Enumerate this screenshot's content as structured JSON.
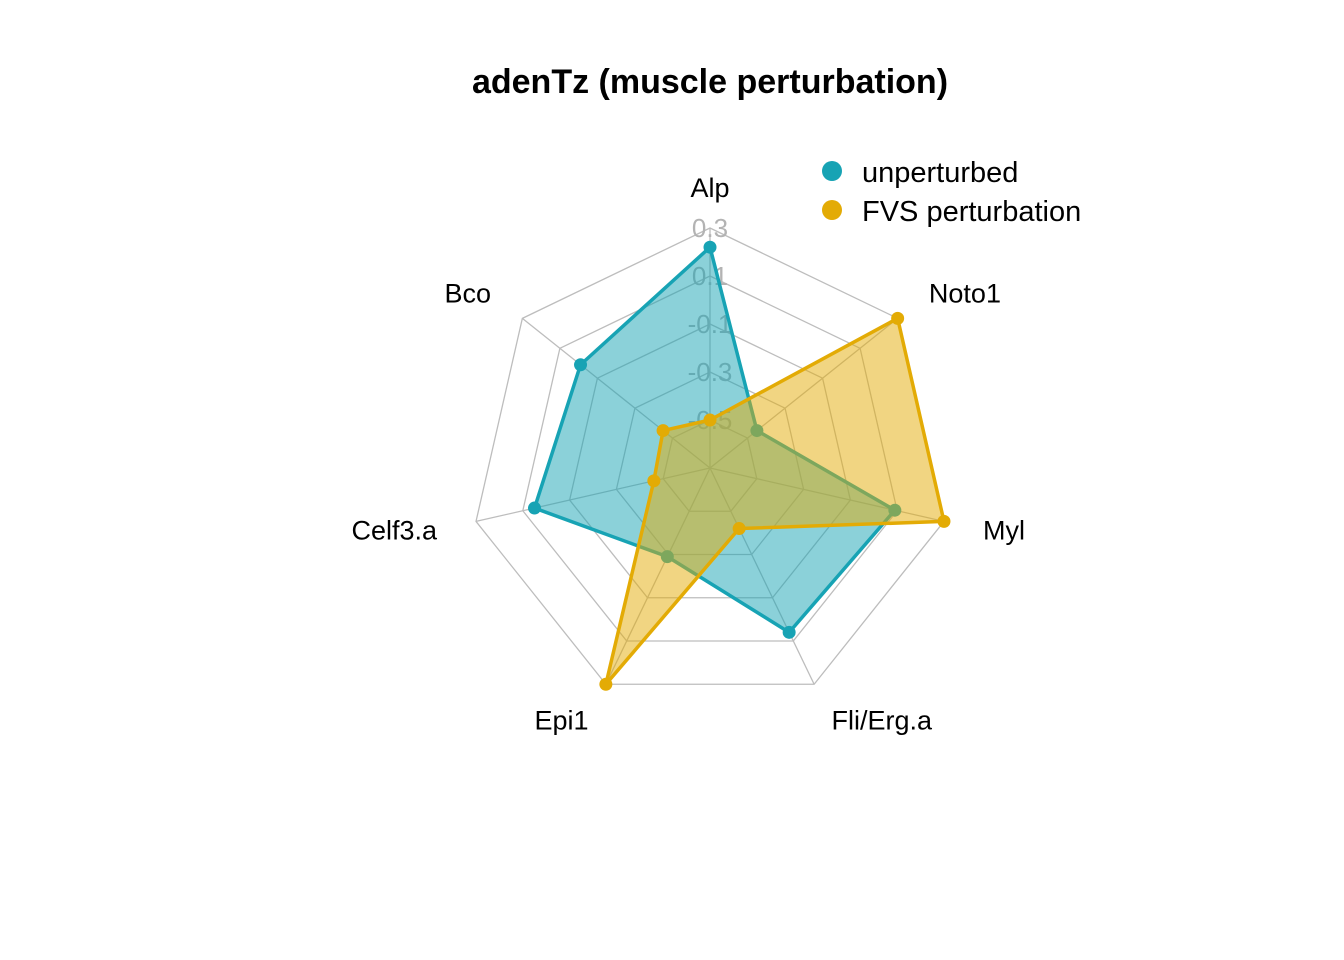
{
  "chart_data": {
    "type": "radar",
    "title": "adenTz (muscle perturbation)",
    "axes": [
      "Alp",
      "Noto1",
      "Myl",
      "Fli/Erg.a",
      "Epi1",
      "Celf3.a",
      "Bco"
    ],
    "rlim": [
      -0.7,
      0.3
    ],
    "ticks": [
      "0.3",
      "0.1",
      "-0.1",
      "-0.3",
      "-0.5"
    ],
    "tick_values": [
      0.3,
      0.1,
      -0.1,
      -0.3,
      -0.5
    ],
    "grid": true,
    "legend_position": "top-right",
    "series": [
      {
        "name": "unperturbed",
        "color": "#17a3b4",
        "values": [
          0.22,
          -0.45,
          0.09,
          0.06,
          -0.29,
          0.05,
          -0.01
        ]
      },
      {
        "name": "FVS perturbation",
        "color": "#e3ab05",
        "values": [
          -0.5,
          0.3,
          0.3,
          -0.42,
          0.3,
          -0.46,
          -0.45
        ]
      }
    ]
  }
}
